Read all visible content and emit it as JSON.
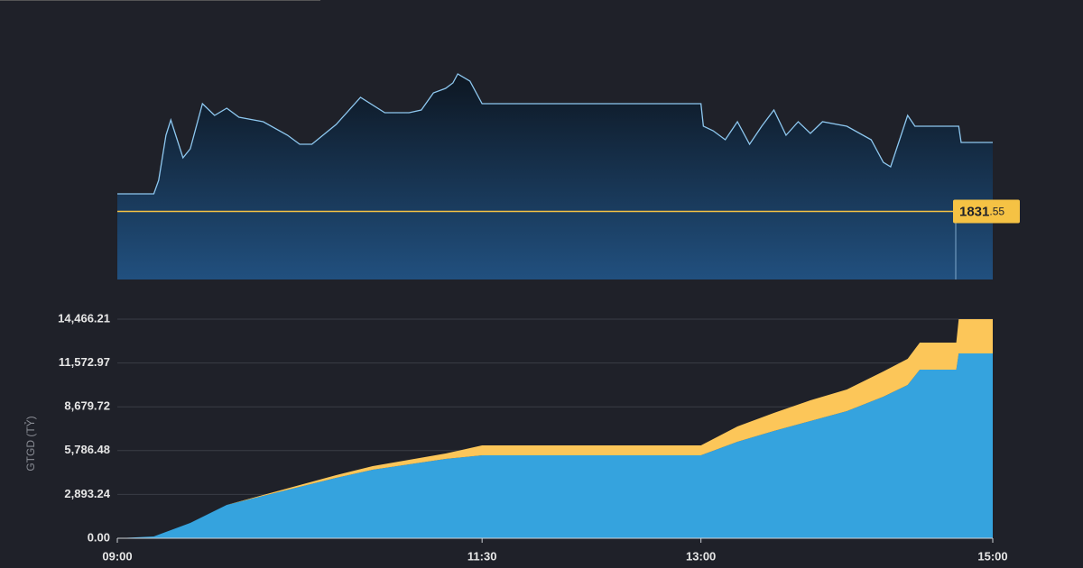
{
  "chart_data": [
    {
      "type": "line",
      "x": [
        "09:00",
        "09:15",
        "09:17",
        "09:20",
        "09:22",
        "09:27",
        "09:30",
        "09:35",
        "09:40",
        "09:45",
        "09:50",
        "10:00",
        "10:10",
        "10:15",
        "10:20",
        "10:30",
        "10:40",
        "10:50",
        "11:00",
        "11:05",
        "11:10",
        "11:15",
        "11:18",
        "11:20",
        "11:25",
        "11:30",
        "13:00",
        "13:01",
        "13:05",
        "13:10",
        "13:15",
        "13:20",
        "13:25",
        "13:30",
        "13:35",
        "13:40",
        "13:45",
        "13:50",
        "14:00",
        "14:10",
        "14:15",
        "14:18",
        "14:25",
        "14:28",
        "14:46",
        "14:47",
        "15:00"
      ],
      "series": [
        {
          "color": "#8ec8f0",
          "values": [
            1833.5,
            1833.5,
            1835.0,
            1840.0,
            1841.7,
            1837.5,
            1838.5,
            1843.5,
            1842.2,
            1843.0,
            1842.0,
            1841.5,
            1840.0,
            1839.0,
            1839.0,
            1841.2,
            1844.2,
            1842.5,
            1842.5,
            1842.8,
            1844.7,
            1845.2,
            1845.8,
            1846.8,
            1846.0,
            1843.5,
            1843.5,
            1841.0,
            1840.5,
            1839.5,
            1841.5,
            1839.0,
            1841.0,
            1842.8,
            1840.0,
            1841.5,
            1840.2,
            1841.5,
            1841.0,
            1839.5,
            1837.0,
            1836.5,
            1842.2,
            1841.0,
            1841.0,
            1839.2,
            1839.2
          ]
        }
      ],
      "xlim": [
        "09:00",
        "15:00"
      ],
      "ylim": [
        1824,
        1847
      ],
      "reference": {
        "value": 1831.55,
        "label_main": "1831",
        "label_fraction": ".55",
        "color": "#f5c244"
      }
    },
    {
      "type": "stacked-area",
      "x": [
        "09:00",
        "09:15",
        "09:30",
        "09:45",
        "10:00",
        "10:15",
        "10:30",
        "10:45",
        "11:00",
        "11:15",
        "11:30",
        "13:00",
        "13:15",
        "13:30",
        "13:45",
        "14:00",
        "14:15",
        "14:25",
        "14:30",
        "14:45",
        "14:46",
        "15:00"
      ],
      "series": [
        {
          "color": "#35a3de",
          "values": [
            0,
            119,
            1012,
            2203,
            2798,
            3393,
            3989,
            4524,
            4881,
            5239,
            5477,
            5477,
            6370,
            7084,
            7739,
            8394,
            9346,
            10120,
            11132,
            11132,
            12203,
            12203
          ]
        },
        {
          "color": "#fcc659",
          "values": [
            0,
            0,
            0,
            0,
            60,
            119,
            179,
            238,
            298,
            357,
            655,
            655,
            1012,
            1191,
            1369,
            1429,
            1667,
            1726,
            1786,
            1786,
            2262,
            2262
          ]
        }
      ],
      "xlim": [
        "09:00",
        "15:00"
      ],
      "xticks": [
        "09:00",
        "11:30",
        "13:00",
        "15:00"
      ],
      "ylim": [
        0,
        14466.21
      ],
      "yticks": [
        {
          "value": 0,
          "label": "0.00"
        },
        {
          "value": 2893.24,
          "label": "2,893.24"
        },
        {
          "value": 5786.48,
          "label": "5,786.48"
        },
        {
          "value": 8679.72,
          "label": "8,679.72"
        },
        {
          "value": 11572.97,
          "label": "11,572.97"
        },
        {
          "value": 14466.21,
          "label": "14,466.21"
        }
      ],
      "ylabel": "GTGD (TỶ)",
      "grid": true
    }
  ]
}
